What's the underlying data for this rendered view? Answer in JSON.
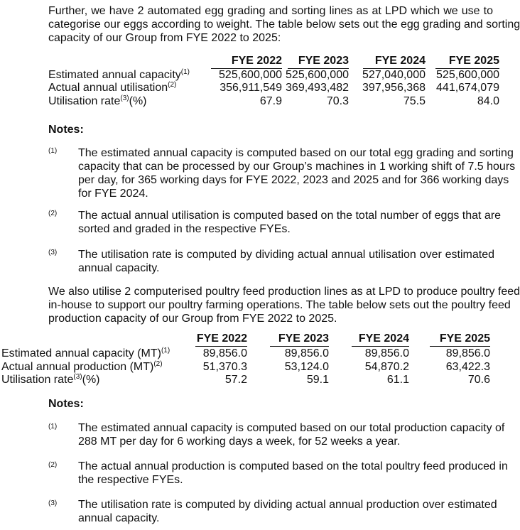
{
  "para1": [
    "Further, we have 2 automated egg grading and sorting lines as at LPD which we use to",
    "categorise our eggs according to weight. The table below sets out the egg grading and sorting",
    "capacity of our Group from FYE 2022 to 2025:"
  ],
  "table1": {
    "headers": [
      "FYE 2022",
      "FYE 2023",
      "FYE 2024",
      "FYE 2025"
    ],
    "rows": [
      {
        "label": "Estimated annual capacity",
        "sup": "(1)",
        "suffix": "",
        "values": [
          "525,600,000",
          "525,600,000",
          "527,040,000",
          "525,600,000"
        ]
      },
      {
        "label": "Actual annual utilisation",
        "sup": "(2)",
        "suffix": "",
        "values": [
          "356,911,549",
          "369,493,482",
          "397,956,368",
          "441,674,079"
        ]
      },
      {
        "label": "Utilisation rate",
        "sup": "(3)",
        "suffix": "(%)",
        "values": [
          "67.9",
          "70.3",
          "75.5",
          "84.0"
        ]
      }
    ]
  },
  "notes1": {
    "title": "Notes:",
    "items": [
      {
        "marker": "(1)",
        "lines": [
          "The estimated annual capacity is computed based on our total egg grading and sorting",
          "capacity that can be processed by our Group’s machines in 1 working shift of 7.5 hours",
          "per day, for 365 working days for FYE 2022, 2023 and 2025 and for 366 working days",
          "for FYE 2024."
        ]
      },
      {
        "marker": "(2)",
        "lines": [
          "The actual annual utilisation is computed based on the total number of eggs that are",
          "sorted and graded in the respective FYEs."
        ]
      },
      {
        "marker": "(3)",
        "lines": [
          "The utilisation rate is computed by dividing actual annual utilisation over estimated",
          "annual capacity."
        ]
      }
    ]
  },
  "para2": [
    "We also utilise 2 computerised poultry feed production lines as at LPD to produce poultry feed",
    "in-house to support our poultry farming operations. The table below sets out the poultry feed",
    "production capacity of our Group from FYE 2022 to 2025."
  ],
  "table2": {
    "headers": [
      "FYE 2022",
      "FYE 2023",
      "FYE 2024",
      "FYE 2025"
    ],
    "rows": [
      {
        "label": "Estimated annual capacity (MT)",
        "sup": "(1)",
        "suffix": "",
        "values": [
          "89,856.0",
          "89,856.0",
          "89,856.0",
          "89,856.0"
        ]
      },
      {
        "label": "Actual annual production (MT)",
        "sup": "(2)",
        "suffix": "",
        "values": [
          "51,370.3",
          "53,124.0",
          "54,870.2",
          "63,422.3"
        ]
      },
      {
        "label": "Utilisation rate",
        "sup": "(3)",
        "suffix": "(%)",
        "values": [
          "57.2",
          "59.1",
          "61.1",
          "70.6"
        ]
      }
    ]
  },
  "notes2": {
    "title": "Notes:",
    "items": [
      {
        "marker": "(1)",
        "lines": [
          "The estimated annual capacity is computed based on our total production capacity of",
          "288 MT per day for 6 working days a week, for 52 weeks a year."
        ]
      },
      {
        "marker": "(2)",
        "lines": [
          "The actual annual production is computed based on the total poultry feed produced in",
          "the respective FYEs."
        ]
      },
      {
        "marker": "(3)",
        "lines": [
          "The utilisation rate is computed by dividing actual annual production over estimated",
          "annual capacity."
        ]
      }
    ]
  }
}
